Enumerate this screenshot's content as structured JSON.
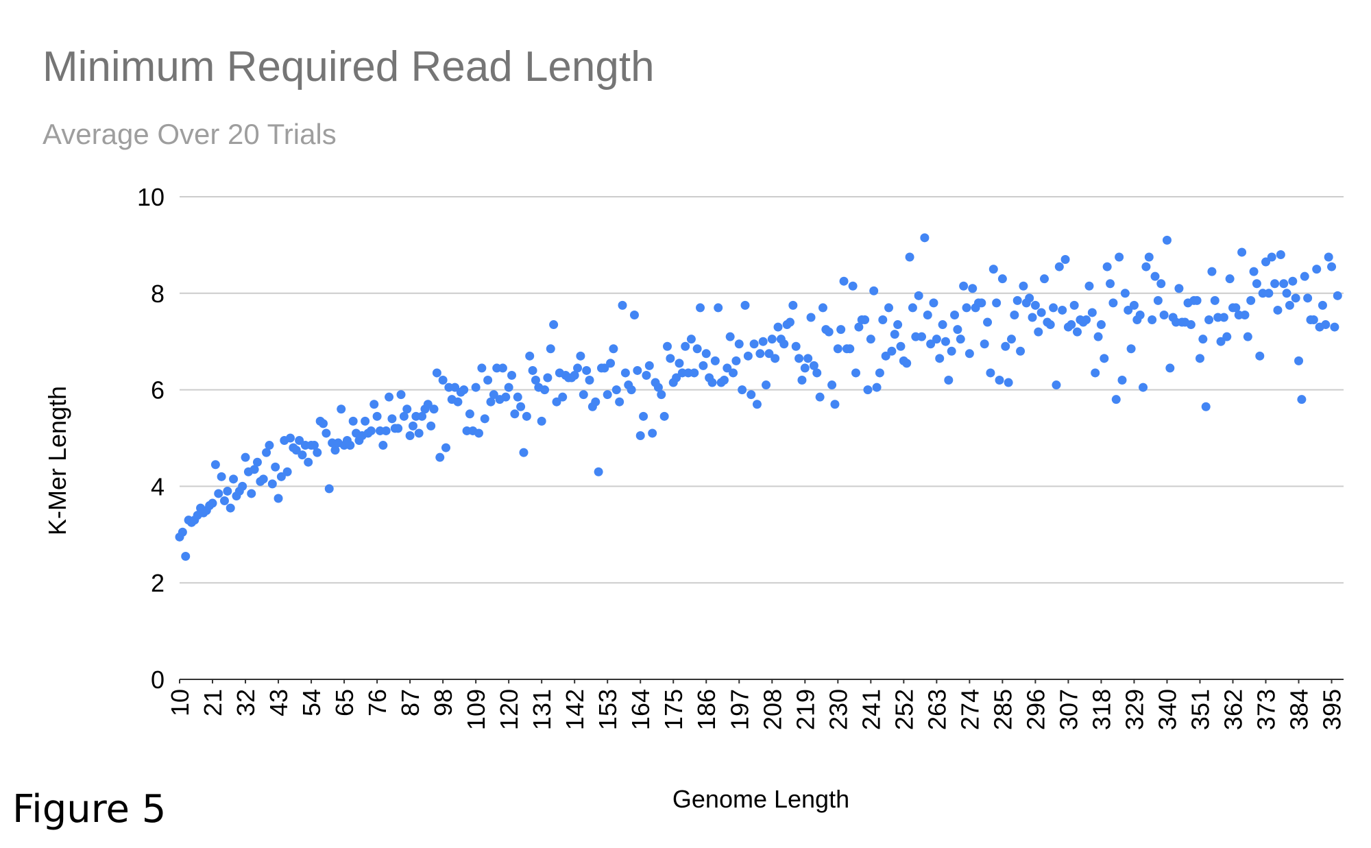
{
  "figure_label": "Figure 5",
  "chart_data": {
    "type": "scatter",
    "title": "Minimum Required Read Length",
    "subtitle": "Average Over 20 Trials",
    "xlabel": "Genome Length",
    "ylabel": "K-Mer Length",
    "ylim": [
      0,
      10
    ],
    "yticks": [
      0,
      2,
      4,
      6,
      8,
      10
    ],
    "xlim": [
      10,
      399
    ],
    "xticks": [
      10,
      21,
      32,
      43,
      54,
      65,
      76,
      87,
      98,
      109,
      120,
      131,
      142,
      153,
      164,
      175,
      186,
      197,
      208,
      219,
      230,
      241,
      252,
      263,
      274,
      285,
      296,
      307,
      318,
      329,
      340,
      351,
      362,
      373,
      384,
      395
    ],
    "grid": true,
    "legend": "none",
    "marker_color": "#4285f4",
    "x_start": 10,
    "x_step": 1,
    "y": [
      2.95,
      3.05,
      2.55,
      3.3,
      3.25,
      3.3,
      3.4,
      3.55,
      3.45,
      3.5,
      3.6,
      3.65,
      4.45,
      3.85,
      4.2,
      3.7,
      3.9,
      3.55,
      4.15,
      3.8,
      3.9,
      4.0,
      4.6,
      4.3,
      3.85,
      4.35,
      4.5,
      4.1,
      4.15,
      4.7,
      4.85,
      4.05,
      4.4,
      3.75,
      4.2,
      4.95,
      4.3,
      5.0,
      4.8,
      4.75,
      4.95,
      4.65,
      4.85,
      4.5,
      4.85,
      4.85,
      4.7,
      5.35,
      5.3,
      5.1,
      3.95,
      4.9,
      4.75,
      4.9,
      5.6,
      4.85,
      4.95,
      4.85,
      5.35,
      5.1,
      4.95,
      5.05,
      5.35,
      5.1,
      5.15,
      5.7,
      5.45,
      5.15,
      4.85,
      5.15,
      5.85,
      5.4,
      5.2,
      5.2,
      5.9,
      5.45,
      5.6,
      5.05,
      5.25,
      5.45,
      5.1,
      5.45,
      5.6,
      5.7,
      5.25,
      5.6,
      6.35,
      4.6,
      6.2,
      4.8,
      6.05,
      5.8,
      6.05,
      5.75,
      5.95,
      6.0,
      5.15,
      5.5,
      5.15,
      6.05,
      5.1,
      6.45,
      5.4,
      6.2,
      5.75,
      5.9,
      6.45,
      5.8,
      6.45,
      5.85,
      6.05,
      6.3,
      5.5,
      5.85,
      5.65,
      4.7,
      5.45,
      6.7,
      6.4,
      6.2,
      6.05,
      5.35,
      6.0,
      6.25,
      6.85,
      7.35,
      5.75,
      6.35,
      5.85,
      6.3,
      6.25,
      6.25,
      6.3,
      6.45,
      6.7,
      5.9,
      6.4,
      6.2,
      5.65,
      5.75,
      4.3,
      6.45,
      6.45,
      5.9,
      6.55,
      6.85,
      6.0,
      5.75,
      7.75,
      6.35,
      6.1,
      6.0,
      7.55,
      6.4,
      5.05,
      5.45,
      6.3,
      6.5,
      5.1,
      6.15,
      6.05,
      5.9,
      5.45,
      6.9,
      6.65,
      6.15,
      6.25,
      6.55,
      6.35,
      6.9,
      6.35,
      7.05,
      6.35,
      6.85,
      7.7,
      6.5,
      6.75,
      6.25,
      6.15,
      6.6,
      7.7,
      6.15,
      6.2,
      6.45,
      7.1,
      6.35,
      6.6,
      6.95,
      6.0,
      7.75,
      6.7,
      5.9,
      6.95,
      5.7,
      6.75,
      7.0,
      6.1,
      6.75,
      7.05,
      6.65,
      7.3,
      7.05,
      6.95,
      7.35,
      7.4,
      7.75,
      6.9,
      6.65,
      6.2,
      6.45,
      6.65,
      7.5,
      6.5,
      6.35,
      5.85,
      7.7,
      7.25,
      7.2,
      6.1,
      5.7,
      6.85,
      7.25,
      8.25,
      6.85,
      6.85,
      8.15,
      6.35,
      7.3,
      7.45,
      7.45,
      6.0,
      7.05,
      8.05,
      6.05,
      6.35,
      7.45,
      6.7,
      7.7,
      6.8,
      7.15,
      7.35,
      6.9,
      6.6,
      6.55,
      8.75,
      7.7,
      7.1,
      7.95,
      7.1,
      9.15,
      7.55,
      6.95,
      7.8,
      7.05,
      6.65,
      7.35,
      7.0,
      6.2,
      6.8,
      7.55,
      7.25,
      7.05,
      8.15,
      7.7,
      6.75,
      8.1,
      7.7,
      7.8,
      7.8,
      6.95,
      7.4,
      6.35,
      8.5,
      7.8,
      6.2,
      8.3,
      6.9,
      6.15,
      7.05,
      7.55,
      7.85,
      6.8,
      8.15,
      7.8,
      7.9,
      7.5,
      7.75,
      7.2,
      7.6,
      8.3,
      7.4,
      7.35,
      7.7,
      6.1,
      8.55,
      7.65,
      8.7,
      7.3,
      7.35,
      7.75,
      7.2,
      7.45,
      7.4,
      7.45,
      8.15,
      7.6,
      6.35,
      7.1,
      7.35,
      6.65,
      8.55,
      8.2,
      7.8,
      5.8,
      8.75,
      6.2,
      8.0,
      7.65,
      6.85,
      7.75,
      7.45,
      7.55,
      6.05,
      8.55,
      8.75,
      7.45,
      8.35,
      7.85,
      8.2,
      7.55,
      9.1,
      6.45,
      7.5,
      7.4,
      8.1,
      7.4,
      7.4,
      7.8,
      7.35,
      7.85,
      7.85,
      6.65,
      7.05,
      5.65,
      7.45,
      8.45,
      7.85,
      7.5,
      7.0,
      7.5,
      7.1,
      8.3,
      7.7,
      7.7,
      7.55,
      8.85,
      7.55,
      7.1,
      7.85,
      8.45,
      8.2,
      6.7,
      8.0,
      8.65,
      8.0,
      8.75,
      8.2,
      7.65,
      8.8,
      8.2,
      8.0,
      7.75,
      8.25,
      7.9,
      6.6,
      5.8,
      8.35,
      7.9,
      7.45,
      7.45,
      8.5,
      7.3,
      7.75,
      7.35,
      8.75,
      8.55,
      7.3,
      7.95
    ]
  }
}
